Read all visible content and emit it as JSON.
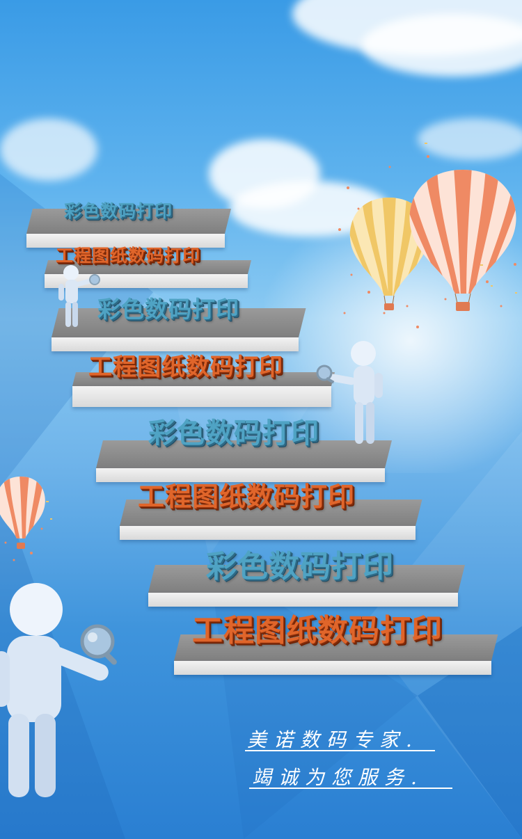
{
  "steps": [
    {
      "label": "彩色数码打印",
      "kind": "color"
    },
    {
      "label": "工程图纸数码打印",
      "kind": "eng"
    },
    {
      "label": "彩色数码打印",
      "kind": "color"
    },
    {
      "label": "工程图纸数码打印",
      "kind": "eng"
    },
    {
      "label": "彩色数码打印",
      "kind": "color"
    },
    {
      "label": "工程图纸数码打印",
      "kind": "eng"
    },
    {
      "label": "彩色数码打印",
      "kind": "color"
    },
    {
      "label": "工程图纸数码打印",
      "kind": "eng"
    }
  ],
  "slogan": {
    "line1": "美诺数码专家.",
    "line2": "竭诚为您服务."
  },
  "colors": {
    "sky_top": "#3a9be6",
    "sky_bottom": "#2a7fd2",
    "step_text_color": "#4fa3c4",
    "step_text_eng": "#e0652a",
    "balloon_orange": "#ef8a64",
    "balloon_yellow": "#f0c766"
  },
  "icons": [
    "hot-air-balloon-icon",
    "3d-person-magnifier-icon"
  ]
}
